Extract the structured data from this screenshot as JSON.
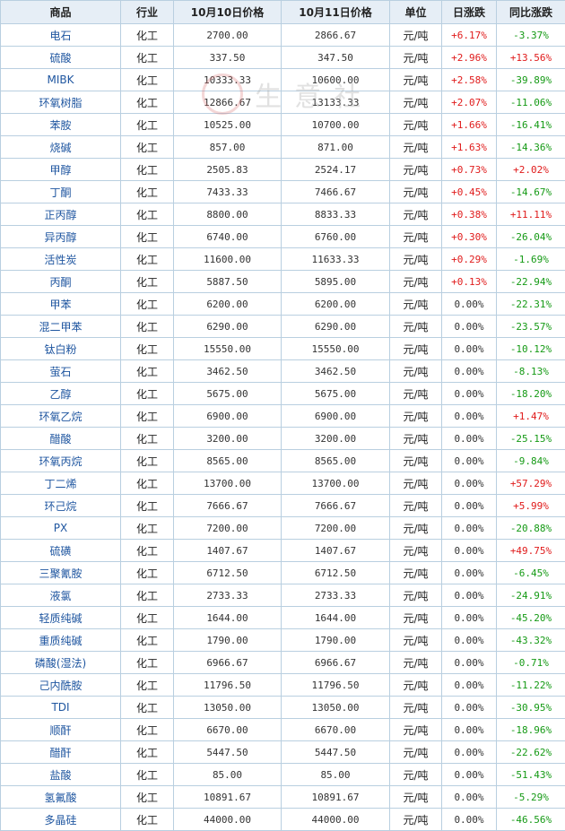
{
  "table": {
    "headers": [
      "商品",
      "行业",
      "10月10日价格",
      "10月11日价格",
      "单位",
      "日涨跌",
      "同比涨跌"
    ],
    "rows": [
      {
        "name": "电石",
        "industry": "化工",
        "p1": "2700.00",
        "p2": "2866.67",
        "unit": "元/吨",
        "day": "+6.17%",
        "yoy": "-3.37%"
      },
      {
        "name": "硫酸",
        "industry": "化工",
        "p1": "337.50",
        "p2": "347.50",
        "unit": "元/吨",
        "day": "+2.96%",
        "yoy": "+13.56%"
      },
      {
        "name": "MIBK",
        "industry": "化工",
        "p1": "10333.33",
        "p2": "10600.00",
        "unit": "元/吨",
        "day": "+2.58%",
        "yoy": "-39.89%"
      },
      {
        "name": "环氧树脂",
        "industry": "化工",
        "p1": "12866.67",
        "p2": "13133.33",
        "unit": "元/吨",
        "day": "+2.07%",
        "yoy": "-11.06%"
      },
      {
        "name": "苯胺",
        "industry": "化工",
        "p1": "10525.00",
        "p2": "10700.00",
        "unit": "元/吨",
        "day": "+1.66%",
        "yoy": "-16.41%"
      },
      {
        "name": "烧碱",
        "industry": "化工",
        "p1": "857.00",
        "p2": "871.00",
        "unit": "元/吨",
        "day": "+1.63%",
        "yoy": "-14.36%"
      },
      {
        "name": "甲醇",
        "industry": "化工",
        "p1": "2505.83",
        "p2": "2524.17",
        "unit": "元/吨",
        "day": "+0.73%",
        "yoy": "+2.02%"
      },
      {
        "name": "丁酮",
        "industry": "化工",
        "p1": "7433.33",
        "p2": "7466.67",
        "unit": "元/吨",
        "day": "+0.45%",
        "yoy": "-14.67%"
      },
      {
        "name": "正丙醇",
        "industry": "化工",
        "p1": "8800.00",
        "p2": "8833.33",
        "unit": "元/吨",
        "day": "+0.38%",
        "yoy": "+11.11%"
      },
      {
        "name": "异丙醇",
        "industry": "化工",
        "p1": "6740.00",
        "p2": "6760.00",
        "unit": "元/吨",
        "day": "+0.30%",
        "yoy": "-26.04%"
      },
      {
        "name": "活性炭",
        "industry": "化工",
        "p1": "11600.00",
        "p2": "11633.33",
        "unit": "元/吨",
        "day": "+0.29%",
        "yoy": "-1.69%"
      },
      {
        "name": "丙酮",
        "industry": "化工",
        "p1": "5887.50",
        "p2": "5895.00",
        "unit": "元/吨",
        "day": "+0.13%",
        "yoy": "-22.94%"
      },
      {
        "name": "甲苯",
        "industry": "化工",
        "p1": "6200.00",
        "p2": "6200.00",
        "unit": "元/吨",
        "day": "0.00%",
        "yoy": "-22.31%"
      },
      {
        "name": "混二甲苯",
        "industry": "化工",
        "p1": "6290.00",
        "p2": "6290.00",
        "unit": "元/吨",
        "day": "0.00%",
        "yoy": "-23.57%"
      },
      {
        "name": "钛白粉",
        "industry": "化工",
        "p1": "15550.00",
        "p2": "15550.00",
        "unit": "元/吨",
        "day": "0.00%",
        "yoy": "-10.12%"
      },
      {
        "name": "萤石",
        "industry": "化工",
        "p1": "3462.50",
        "p2": "3462.50",
        "unit": "元/吨",
        "day": "0.00%",
        "yoy": "-8.13%"
      },
      {
        "name": "乙醇",
        "industry": "化工",
        "p1": "5675.00",
        "p2": "5675.00",
        "unit": "元/吨",
        "day": "0.00%",
        "yoy": "-18.20%"
      },
      {
        "name": "环氧乙烷",
        "industry": "化工",
        "p1": "6900.00",
        "p2": "6900.00",
        "unit": "元/吨",
        "day": "0.00%",
        "yoy": "+1.47%"
      },
      {
        "name": "醋酸",
        "industry": "化工",
        "p1": "3200.00",
        "p2": "3200.00",
        "unit": "元/吨",
        "day": "0.00%",
        "yoy": "-25.15%"
      },
      {
        "name": "环氧丙烷",
        "industry": "化工",
        "p1": "8565.00",
        "p2": "8565.00",
        "unit": "元/吨",
        "day": "0.00%",
        "yoy": "-9.84%"
      },
      {
        "name": "丁二烯",
        "industry": "化工",
        "p1": "13700.00",
        "p2": "13700.00",
        "unit": "元/吨",
        "day": "0.00%",
        "yoy": "+57.29%"
      },
      {
        "name": "环己烷",
        "industry": "化工",
        "p1": "7666.67",
        "p2": "7666.67",
        "unit": "元/吨",
        "day": "0.00%",
        "yoy": "+5.99%"
      },
      {
        "name": "PX",
        "industry": "化工",
        "p1": "7200.00",
        "p2": "7200.00",
        "unit": "元/吨",
        "day": "0.00%",
        "yoy": "-20.88%"
      },
      {
        "name": "硫磺",
        "industry": "化工",
        "p1": "1407.67",
        "p2": "1407.67",
        "unit": "元/吨",
        "day": "0.00%",
        "yoy": "+49.75%"
      },
      {
        "name": "三聚氰胺",
        "industry": "化工",
        "p1": "6712.50",
        "p2": "6712.50",
        "unit": "元/吨",
        "day": "0.00%",
        "yoy": "-6.45%"
      },
      {
        "name": "液氯",
        "industry": "化工",
        "p1": "2733.33",
        "p2": "2733.33",
        "unit": "元/吨",
        "day": "0.00%",
        "yoy": "-24.91%"
      },
      {
        "name": "轻质纯碱",
        "industry": "化工",
        "p1": "1644.00",
        "p2": "1644.00",
        "unit": "元/吨",
        "day": "0.00%",
        "yoy": "-45.20%"
      },
      {
        "name": "重质纯碱",
        "industry": "化工",
        "p1": "1790.00",
        "p2": "1790.00",
        "unit": "元/吨",
        "day": "0.00%",
        "yoy": "-43.32%"
      },
      {
        "name": "磷酸(湿法)",
        "industry": "化工",
        "p1": "6966.67",
        "p2": "6966.67",
        "unit": "元/吨",
        "day": "0.00%",
        "yoy": "-0.71%"
      },
      {
        "name": "己内酰胺",
        "industry": "化工",
        "p1": "11796.50",
        "p2": "11796.50",
        "unit": "元/吨",
        "day": "0.00%",
        "yoy": "-11.22%"
      },
      {
        "name": "TDI",
        "industry": "化工",
        "p1": "13050.00",
        "p2": "13050.00",
        "unit": "元/吨",
        "day": "0.00%",
        "yoy": "-30.95%"
      },
      {
        "name": "顺酐",
        "industry": "化工",
        "p1": "6670.00",
        "p2": "6670.00",
        "unit": "元/吨",
        "day": "0.00%",
        "yoy": "-18.96%"
      },
      {
        "name": "醋酐",
        "industry": "化工",
        "p1": "5447.50",
        "p2": "5447.50",
        "unit": "元/吨",
        "day": "0.00%",
        "yoy": "-22.62%"
      },
      {
        "name": "盐酸",
        "industry": "化工",
        "p1": "85.00",
        "p2": "85.00",
        "unit": "元/吨",
        "day": "0.00%",
        "yoy": "-51.43%"
      },
      {
        "name": "氢氟酸",
        "industry": "化工",
        "p1": "10891.67",
        "p2": "10891.67",
        "unit": "元/吨",
        "day": "0.00%",
        "yoy": "-5.29%"
      },
      {
        "name": "多晶硅",
        "industry": "化工",
        "p1": "44000.00",
        "p2": "44000.00",
        "unit": "元/吨",
        "day": "0.00%",
        "yoy": "-46.56%"
      }
    ]
  },
  "watermark": {
    "text": "生意社"
  },
  "colors": {
    "up": "#e01b1b",
    "down": "#159a15",
    "name_link": "#1f56a0",
    "header_bg": "#e6eef6",
    "border": "#b9cfe0"
  }
}
